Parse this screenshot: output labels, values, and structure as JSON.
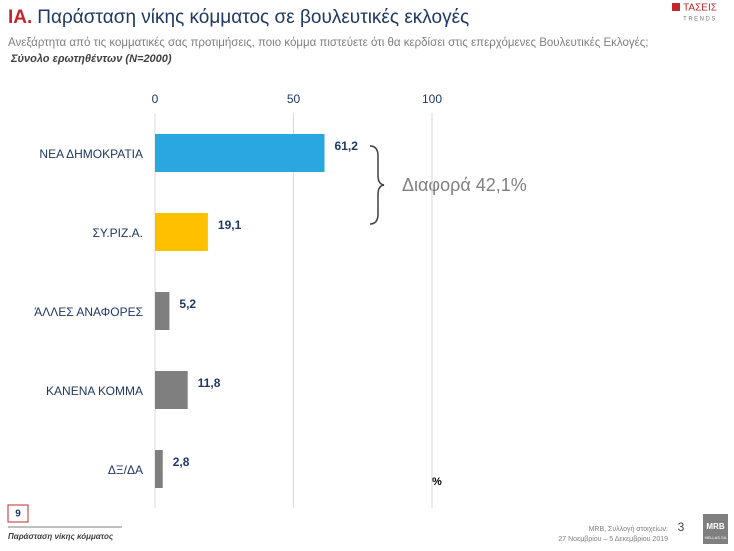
{
  "chart_data": {
    "type": "bar",
    "section": "ΙΑ.",
    "title": "Παράσταση νίκης κόμματος σε βουλευτικές εκλογές",
    "subtitle": "Ανεξάρτητα από τις κομματικές σας προτιμήσεις, ποιο κόμμα πιστεύετε ότι θα κερδίσει στις επερχόμενες Βουλευτικές Εκλογές;",
    "base_note": "Σύνολο ερωτηθέντων (N=2000)",
    "categories": [
      "ΝΕΑ ΔΗΜΟΚΡΑΤΙΑ",
      "ΣΥ.ΡΙΖ.Α.",
      "ΆΛΛΕΣ ΑΝΑΦΟΡΕΣ",
      "ΚΑΝΕΝΑ ΚΟΜΜΑ",
      "ΔΞ/ΔΑ"
    ],
    "values": [
      61.2,
      19.1,
      5.2,
      11.8,
      2.8
    ],
    "value_labels": [
      "61,2",
      "19,1",
      "5,2",
      "11,8",
      "2,8"
    ],
    "colors": [
      "#29a8e0",
      "#ffc000",
      "#7f7f7f",
      "#7f7f7f",
      "#7f7f7f"
    ],
    "xlim": [
      0,
      100
    ],
    "xticks": [
      0,
      50,
      100
    ],
    "grid": true,
    "unit": "%",
    "annotation": "Διαφορά 42,1%"
  },
  "header": {
    "logo": "ΤΑΣΕΙΣ",
    "logo_sub": "TRENDS"
  },
  "footer": {
    "page_box": "9",
    "section_name": "Παράσταση νίκης κόμματος",
    "source": "MRB, Συλλογή στοιχείων:",
    "dates": "27 Νοεμβρίου – 5 Δεκεμβρίου 2019",
    "page_number": "3",
    "brand": "MRB",
    "brand_sub": "HELLAS SA"
  }
}
